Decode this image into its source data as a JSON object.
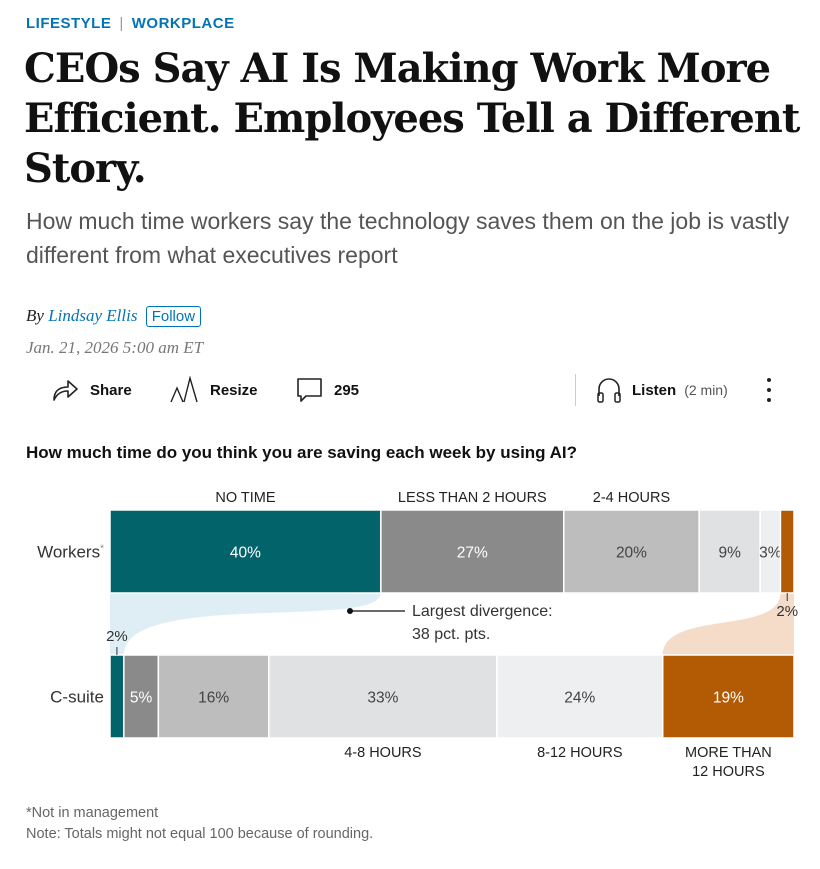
{
  "kicker": {
    "section": "LIFESTYLE",
    "separator": "|",
    "subsection": "WORKPLACE"
  },
  "headline": "CEOs Say AI Is Making Work More Efficient. Employees Tell a Different Story.",
  "dek": "How much time workers say the technology saves them on the job is vastly different from what executives report",
  "byline": {
    "prefix": "By",
    "author": "Lindsay Ellis",
    "follow": "Follow"
  },
  "date": "Jan. 21, 2026 5:00 am ET",
  "toolbar": {
    "share": "Share",
    "resize": "Resize",
    "comments": "295",
    "listen": "Listen",
    "listen_duration": "(2 min)"
  },
  "chart_data": {
    "type": "bar",
    "stacked": true,
    "title": "How much time do you think you are saving each week by using AI?",
    "categories": [
      "NO TIME",
      "LESS THAN 2 HOURS",
      "2-4 HOURS",
      "4-8 HOURS",
      "8-12 HOURS",
      "MORE THAN 12 HOURS"
    ],
    "series": [
      {
        "name": "Workers",
        "footnote_mark": "*",
        "values": [
          40,
          27,
          20,
          9,
          3,
          2
        ]
      },
      {
        "name": "C-suite",
        "values": [
          2,
          5,
          16,
          33,
          24,
          19
        ]
      }
    ],
    "colors": [
      "#03636a",
      "#8a8a8a",
      "#bdbdbd",
      "#e0e1e3",
      "#eeeff1",
      "#b35a05"
    ],
    "annotation": {
      "line1": "Largest divergence:",
      "line2": "38 pct. pts."
    },
    "unit": "%"
  },
  "notes": {
    "footnote": "*Not in management",
    "note": "Note: Totals might not equal 100 because of rounding."
  }
}
